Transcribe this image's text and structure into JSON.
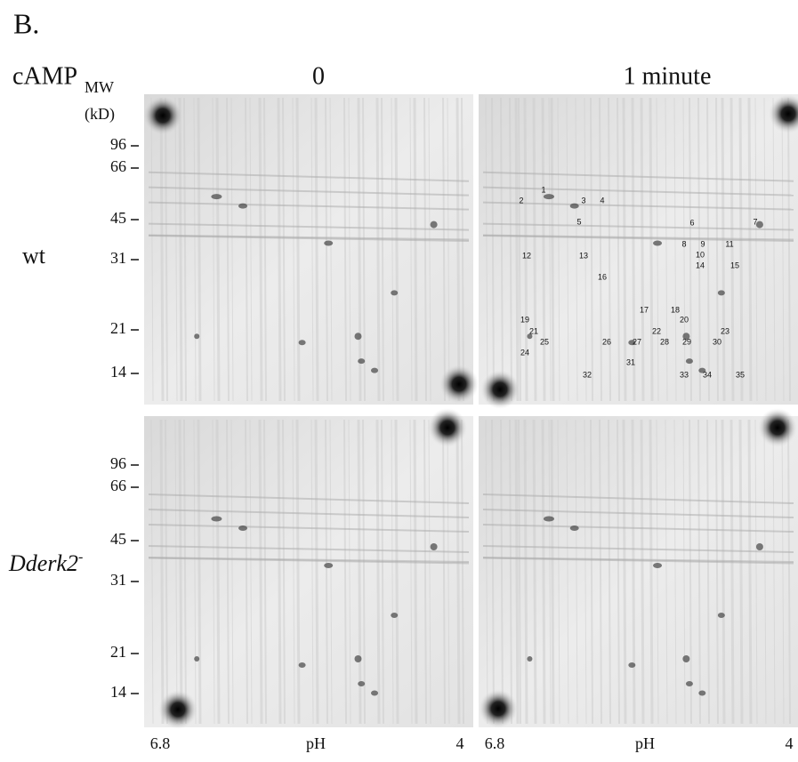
{
  "panel_label": "B.",
  "treatment_label": "cAMP",
  "mw_label": "MW",
  "mw_unit": "(kD)",
  "columns": [
    "0",
    "1 minute"
  ],
  "rows": [
    {
      "label": "wt"
    },
    {
      "label": "Dderk2",
      "superscript": "-"
    }
  ],
  "mw_ticks": [
    "96",
    "66",
    "45",
    "31",
    "21",
    "14"
  ],
  "ph_axis": {
    "left": "6.8",
    "label": "pH",
    "right": "4"
  },
  "spots": [
    "1",
    "2",
    "3",
    "4",
    "5",
    "6",
    "7",
    "8",
    "9",
    "10",
    "11",
    "12",
    "13",
    "14",
    "15",
    "16",
    "17",
    "18",
    "19",
    "20",
    "21",
    "22",
    "23",
    "24",
    "25",
    "26",
    "27",
    "28",
    "29",
    "30",
    "31",
    "32",
    "33",
    "34",
    "35"
  ]
}
